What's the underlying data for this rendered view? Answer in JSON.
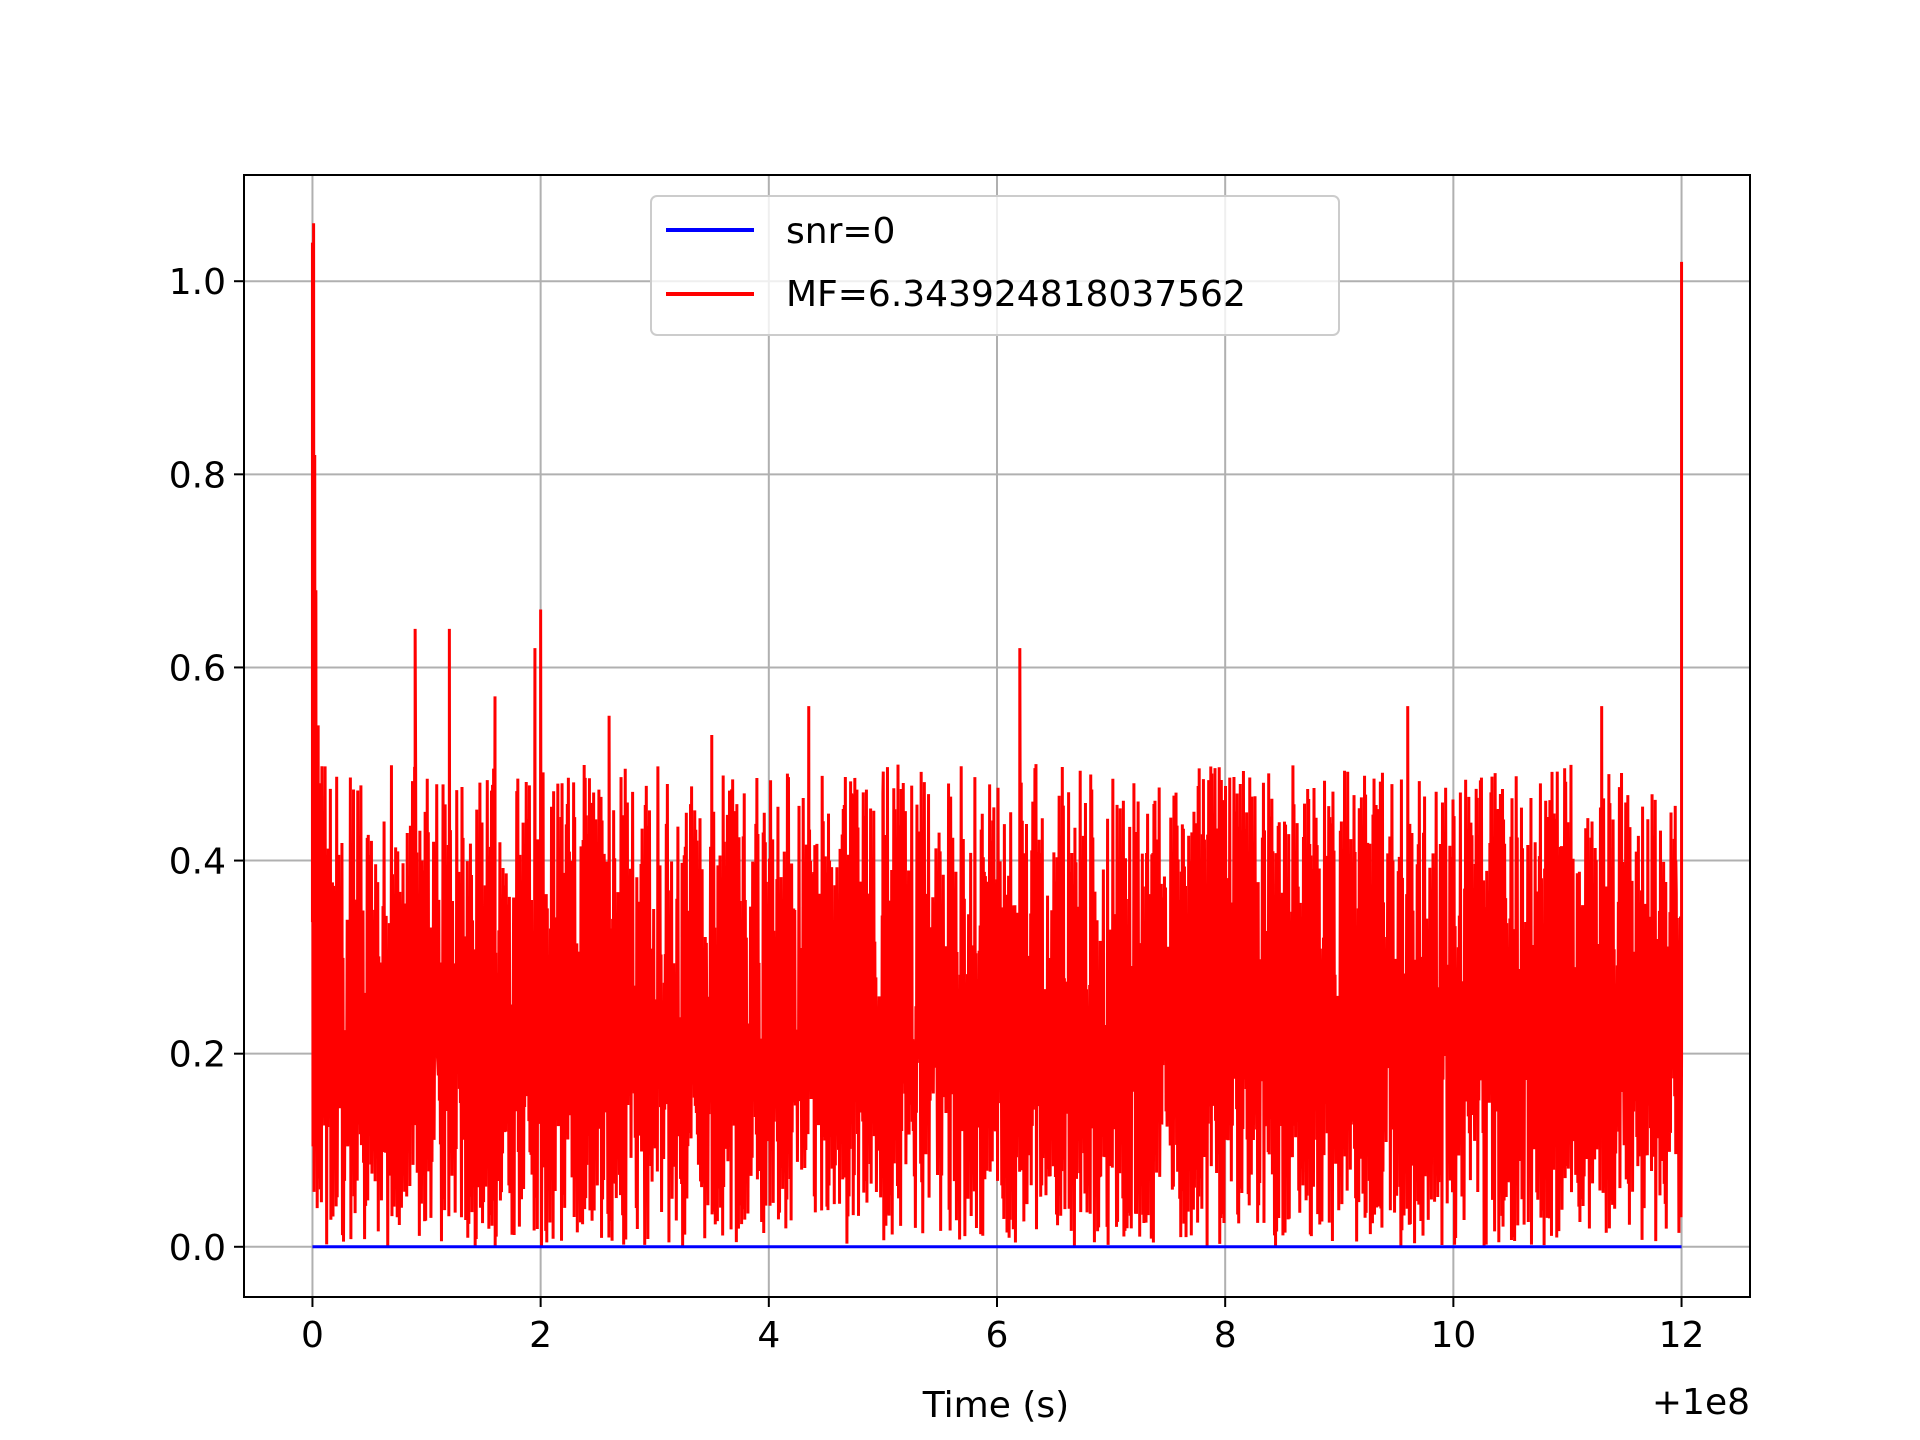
{
  "chart_data": {
    "type": "line",
    "title": "",
    "xlabel": "Time (s)",
    "ylabel": "",
    "x_offset_label": "+1e8",
    "xlim": [
      -0.6,
      12.6
    ],
    "ylim": [
      -0.052,
      1.11
    ],
    "x_ticks": [
      0,
      2,
      4,
      6,
      8,
      10,
      12
    ],
    "x_tick_labels": [
      "0",
      "2",
      "4",
      "6",
      "8",
      "10",
      "12"
    ],
    "y_ticks": [
      0.0,
      0.2,
      0.4,
      0.6,
      0.8,
      1.0
    ],
    "y_tick_labels": [
      "0.0",
      "0.2",
      "0.4",
      "0.6",
      "0.8",
      "1.0"
    ],
    "grid": true,
    "legend_position": "upper center",
    "series": [
      {
        "name": "snr=0",
        "color": "#0000ff",
        "x": [
          0,
          12
        ],
        "y": [
          0.0,
          0.0
        ]
      },
      {
        "name": "MF=6.343924818037562",
        "color": "#ff0000",
        "x": [
          0.0,
          0.01,
          0.02,
          0.03,
          0.05,
          0.07,
          0.1,
          0.15,
          0.2,
          0.25,
          0.9,
          1.2,
          1.6,
          1.95,
          2.0,
          2.6,
          3.5,
          4.35,
          5.0,
          6.2,
          7.2,
          9.6,
          11.3,
          11.95,
          12.0
        ],
        "y": [
          1.04,
          1.06,
          0.82,
          0.68,
          0.54,
          0.48,
          0.43,
          0.35,
          0.3,
          0.28,
          0.64,
          0.64,
          0.57,
          0.62,
          0.66,
          0.55,
          0.53,
          0.56,
          0.47,
          0.62,
          0.48,
          0.56,
          0.56,
          0.4,
          1.02
        ]
      }
    ],
    "noise_band": {
      "series": "MF=6.343924818037562",
      "typical_min": 0.0,
      "typical_max": 0.5,
      "mean": 0.18
    }
  }
}
